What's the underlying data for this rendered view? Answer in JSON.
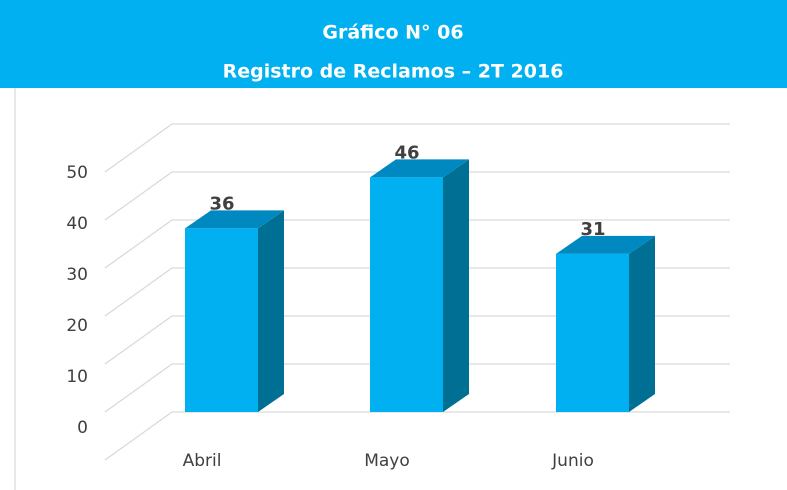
{
  "chart_data": {
    "type": "bar3d",
    "title": "Gráfico N° 06",
    "subtitle": "Registro de Reclamos – 2T 2016",
    "categories": [
      "Abril",
      "Mayo",
      "Junio"
    ],
    "values": [
      36,
      46,
      31
    ],
    "color": "#00b0f0",
    "ylim": [
      0,
      60
    ],
    "yticks": [
      0,
      10,
      20,
      30,
      40,
      50
    ],
    "grid": true
  }
}
